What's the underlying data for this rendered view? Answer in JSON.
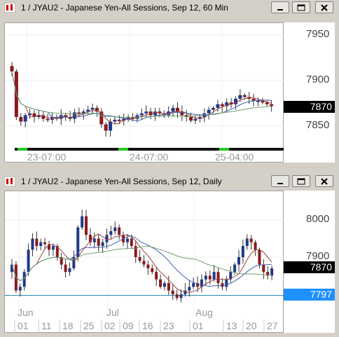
{
  "windows": [
    {
      "title": "1 / JYAU2 - Japanese Yen-All Sessions, Sep 12, 60 Min",
      "y_labels": [
        "7950",
        "7900",
        "7850"
      ],
      "x_labels": [
        "23-07:00",
        "24-07:00",
        "25-04:00"
      ],
      "price_tag": "7870"
    },
    {
      "title": "1 / JYAU2 - Japanese Yen-All Sessions, Sep 12, Daily",
      "y_labels": [
        "8000",
        "7900"
      ],
      "month_labels": [
        "Jun",
        "Jul",
        "Aug"
      ],
      "day_labels": [
        "01",
        "11",
        "18",
        "25",
        "02",
        "09",
        "16",
        "23",
        "01",
        "13",
        "20",
        "27"
      ],
      "price_tag": "7870",
      "line_tag": "7797"
    }
  ],
  "colors": {
    "up_candle": "#1f3a8a",
    "down_candle": "#8b1a1a",
    "price_tag_bg": "#000000",
    "line_tag_bg": "#1e90ff",
    "session_bar": "#22cc22"
  },
  "icons": [
    "app-icon",
    "minimize-icon",
    "restore-icon",
    "close-icon"
  ]
}
